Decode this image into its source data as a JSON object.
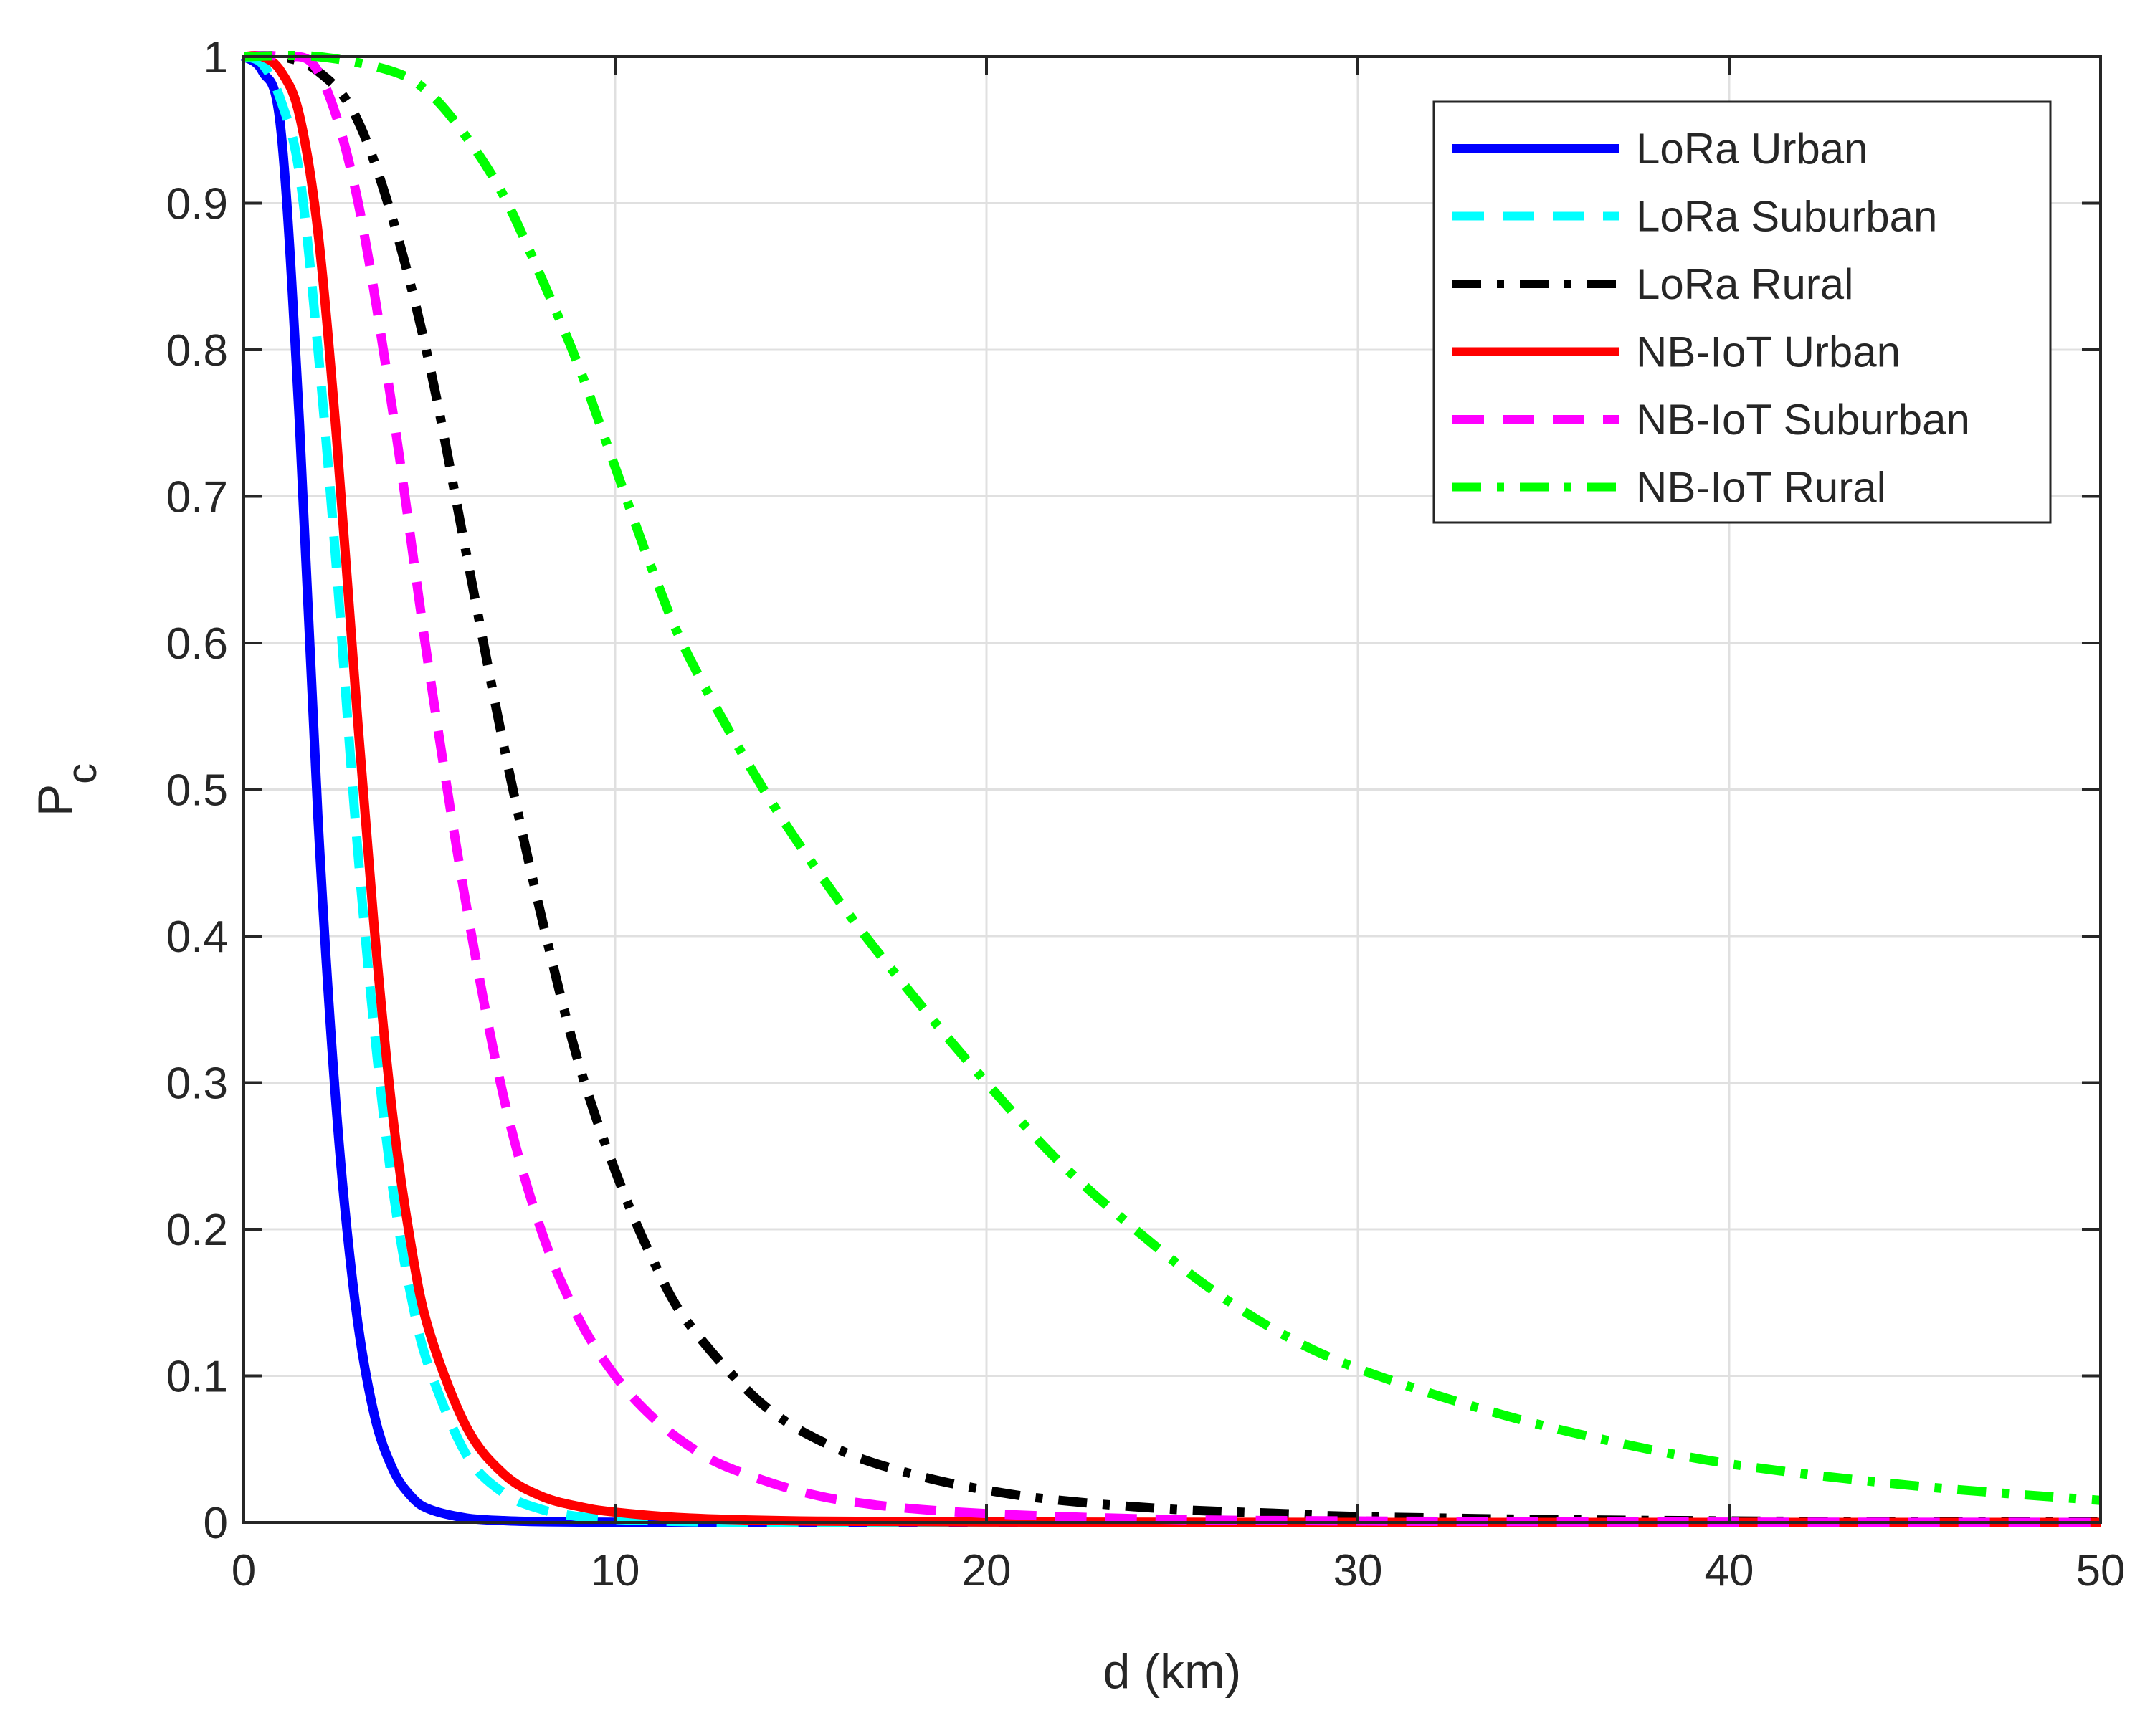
{
  "chart_data": {
    "type": "line",
    "xlabel": "d (km)",
    "ylabel": {
      "main": "P",
      "sub": "c"
    },
    "xlim": [
      0,
      50
    ],
    "ylim": [
      0,
      1
    ],
    "xticks": [
      0,
      10,
      20,
      30,
      40,
      50
    ],
    "xtick_labels": [
      "0",
      "10",
      "20",
      "30",
      "40",
      "50"
    ],
    "yticks": [
      0,
      0.1,
      0.2,
      0.3,
      0.4,
      0.5,
      0.6,
      0.7,
      0.8,
      0.9,
      1
    ],
    "ytick_labels": [
      "0",
      "0.1",
      "0.2",
      "0.3",
      "0.4",
      "0.5",
      "0.6",
      "0.7",
      "0.8",
      "0.9",
      "1"
    ],
    "grid": true,
    "legend_position": "top-right",
    "series": [
      {
        "name": "LoRa Urban",
        "color": "#0000ff",
        "style": "solid",
        "x": [
          0,
          0.5,
          1,
          1.5,
          2,
          2.5,
          3,
          3.5,
          4,
          4.5,
          5,
          6,
          7,
          8,
          10,
          12,
          15,
          20,
          30,
          40,
          50
        ],
        "y": [
          1,
          0.99,
          0.95,
          0.75,
          0.48,
          0.28,
          0.15,
          0.075,
          0.037,
          0.018,
          0.009,
          0.003,
          0.0012,
          0.0005,
          0.0001,
          0,
          0,
          0,
          0,
          0,
          0
        ]
      },
      {
        "name": "LoRa Suburban",
        "color": "#00ffff",
        "style": "dashed",
        "x": [
          0,
          0.5,
          1,
          1.5,
          2,
          2.5,
          3,
          3.5,
          4,
          4.5,
          5,
          6,
          7,
          8,
          9,
          10,
          12,
          15,
          20,
          30,
          40,
          50
        ],
        "y": [
          1,
          0.995,
          0.97,
          0.92,
          0.8,
          0.65,
          0.48,
          0.34,
          0.23,
          0.155,
          0.105,
          0.046,
          0.02,
          0.009,
          0.004,
          0.002,
          0.0005,
          0,
          0,
          0,
          0,
          0
        ]
      },
      {
        "name": "LoRa Rural",
        "color": "#000000",
        "style": "dashdot",
        "x": [
          0,
          1,
          2,
          3,
          4,
          5,
          6,
          7,
          8,
          9,
          10,
          11,
          12,
          14,
          16,
          18,
          20,
          22,
          25,
          28,
          30,
          35,
          40,
          45,
          50
        ],
        "y": [
          1,
          1,
          0.99,
          0.96,
          0.89,
          0.79,
          0.66,
          0.53,
          0.415,
          0.315,
          0.24,
          0.18,
          0.135,
          0.08,
          0.05,
          0.033,
          0.022,
          0.015,
          0.009,
          0.006,
          0.004,
          0.002,
          0.001,
          0.0005,
          0.0003
        ]
      },
      {
        "name": "NB-IoT Urban",
        "color": "#ff0000",
        "style": "solid",
        "x": [
          0,
          0.5,
          1,
          1.5,
          2,
          2.5,
          3,
          3.5,
          4,
          4.5,
          5,
          6,
          7,
          8,
          9,
          10,
          12,
          15,
          20,
          30,
          40,
          50
        ],
        "y": [
          1,
          1,
          0.99,
          0.96,
          0.88,
          0.74,
          0.57,
          0.41,
          0.28,
          0.19,
          0.13,
          0.065,
          0.033,
          0.018,
          0.011,
          0.007,
          0.003,
          0.001,
          0.0003,
          0,
          0,
          0
        ]
      },
      {
        "name": "NB-IoT Suburban",
        "color": "#ff00ff",
        "style": "dashed",
        "x": [
          0,
          1,
          2,
          3,
          4,
          5,
          6,
          7,
          8,
          9,
          10,
          11,
          12,
          13,
          15,
          17,
          20,
          25,
          30,
          35,
          40,
          50
        ],
        "y": [
          1,
          1,
          0.99,
          0.91,
          0.76,
          0.58,
          0.42,
          0.29,
          0.2,
          0.14,
          0.1,
          0.072,
          0.052,
          0.038,
          0.021,
          0.012,
          0.006,
          0.002,
          0.001,
          0.0005,
          0.0002,
          0
        ]
      },
      {
        "name": "NB-IoT Rural",
        "color": "#00ff00",
        "style": "dashdot",
        "x": [
          0,
          2,
          4,
          5,
          6,
          7,
          8,
          9,
          10,
          11,
          12,
          14,
          16,
          18,
          20,
          22,
          24,
          26,
          28,
          30,
          33,
          36,
          40,
          45,
          50
        ],
        "y": [
          1,
          1,
          0.99,
          0.975,
          0.945,
          0.905,
          0.85,
          0.79,
          0.72,
          0.65,
          0.59,
          0.5,
          0.425,
          0.36,
          0.3,
          0.245,
          0.2,
          0.16,
          0.128,
          0.105,
          0.08,
          0.06,
          0.04,
          0.025,
          0.015
        ]
      }
    ]
  }
}
